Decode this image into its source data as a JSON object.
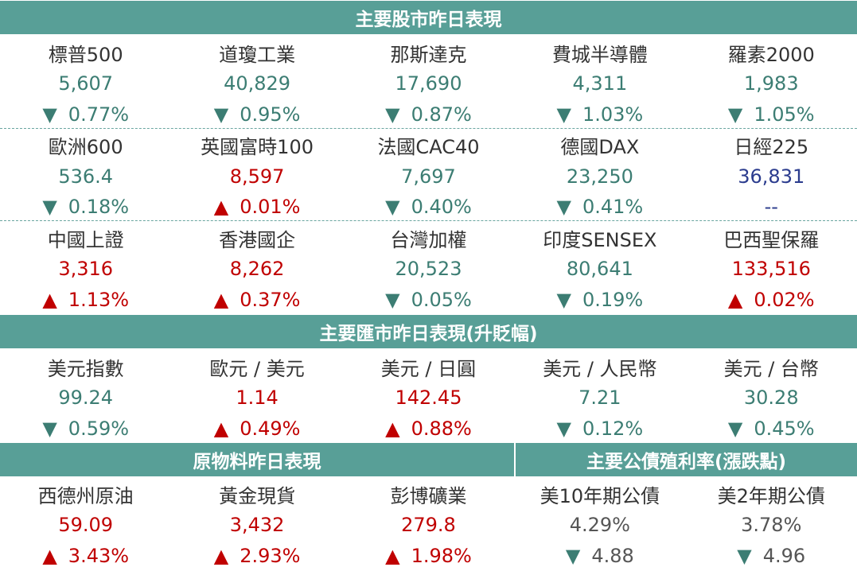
{
  "sections": {
    "stocks_title": "主要股市昨日表現",
    "fx_title": "主要匯市昨日表現(升貶幅)",
    "commodities_title": "原物料昨日表現",
    "bonds_title": "主要公債殖利率(漲跌點)"
  },
  "stocks": [
    [
      {
        "name": "標普500",
        "value": "5,607",
        "change": "0.77%",
        "dir": "down",
        "color": "green"
      },
      {
        "name": "道瓊工業",
        "value": "40,829",
        "change": "0.95%",
        "dir": "down",
        "color": "green"
      },
      {
        "name": "那斯達克",
        "value": "17,690",
        "change": "0.87%",
        "dir": "down",
        "color": "green"
      },
      {
        "name": "費城半導體",
        "value": "4,311",
        "change": "1.03%",
        "dir": "down",
        "color": "green"
      },
      {
        "name": "羅素2000",
        "value": "1,983",
        "change": "1.05%",
        "dir": "down",
        "color": "green"
      }
    ],
    [
      {
        "name": "歐洲600",
        "value": "536.4",
        "change": "0.18%",
        "dir": "down",
        "color": "green"
      },
      {
        "name": "英國富時100",
        "value": "8,597",
        "change": "0.01%",
        "dir": "up",
        "color": "red"
      },
      {
        "name": "法國CAC40",
        "value": "7,697",
        "change": "0.40%",
        "dir": "down",
        "color": "green"
      },
      {
        "name": "德國DAX",
        "value": "23,250",
        "change": "0.41%",
        "dir": "down",
        "color": "green"
      },
      {
        "name": "日經225",
        "value": "36,831",
        "change": "--",
        "dir": "none",
        "color": "blue"
      }
    ],
    [
      {
        "name": "中國上證",
        "value": "3,316",
        "change": "1.13%",
        "dir": "up",
        "color": "red"
      },
      {
        "name": "香港國企",
        "value": "8,262",
        "change": "0.37%",
        "dir": "up",
        "color": "red"
      },
      {
        "name": "台灣加權",
        "value": "20,523",
        "change": "0.05%",
        "dir": "down",
        "color": "green"
      },
      {
        "name": "印度SENSEX",
        "value": "80,641",
        "change": "0.19%",
        "dir": "down",
        "color": "green"
      },
      {
        "name": "巴西聖保羅",
        "value": "133,516",
        "change": "0.02%",
        "dir": "up",
        "color": "red"
      }
    ]
  ],
  "fx": [
    {
      "name": "美元指數",
      "value": "99.24",
      "change": "0.59%",
      "dir": "down",
      "color": "green"
    },
    {
      "name": "歐元 / 美元",
      "value": "1.14",
      "change": "0.49%",
      "dir": "up",
      "color": "red"
    },
    {
      "name": "美元 / 日圓",
      "value": "142.45",
      "change": "0.88%",
      "dir": "up",
      "color": "red"
    },
    {
      "name": "美元 / 人民幣",
      "value": "7.21",
      "change": "0.12%",
      "dir": "down",
      "color": "green"
    },
    {
      "name": "美元 / 台幣",
      "value": "30.28",
      "change": "0.45%",
      "dir": "down",
      "color": "green"
    }
  ],
  "commodities": [
    {
      "name": "西德州原油",
      "value": "59.09",
      "change": "3.43%",
      "dir": "up",
      "color": "red"
    },
    {
      "name": "黃金現貨",
      "value": "3,432",
      "change": "2.93%",
      "dir": "up",
      "color": "red"
    },
    {
      "name": "彭博礦業",
      "value": "279.8",
      "change": "1.98%",
      "dir": "up",
      "color": "red"
    }
  ],
  "bonds": [
    {
      "name": "美10年期公債",
      "value": "4.29%",
      "change": "4.88",
      "dir": "down",
      "color": "gray"
    },
    {
      "name": "美2年期公債",
      "value": "3.78%",
      "change": "4.96",
      "dir": "down",
      "color": "gray"
    }
  ],
  "symbols": {
    "up": "▲",
    "down": "▼"
  },
  "colors": {
    "header_bg": "#589f97",
    "green": "#3c7d73",
    "red": "#c00000",
    "blue": "#2b3c8e",
    "gray": "#555555"
  }
}
